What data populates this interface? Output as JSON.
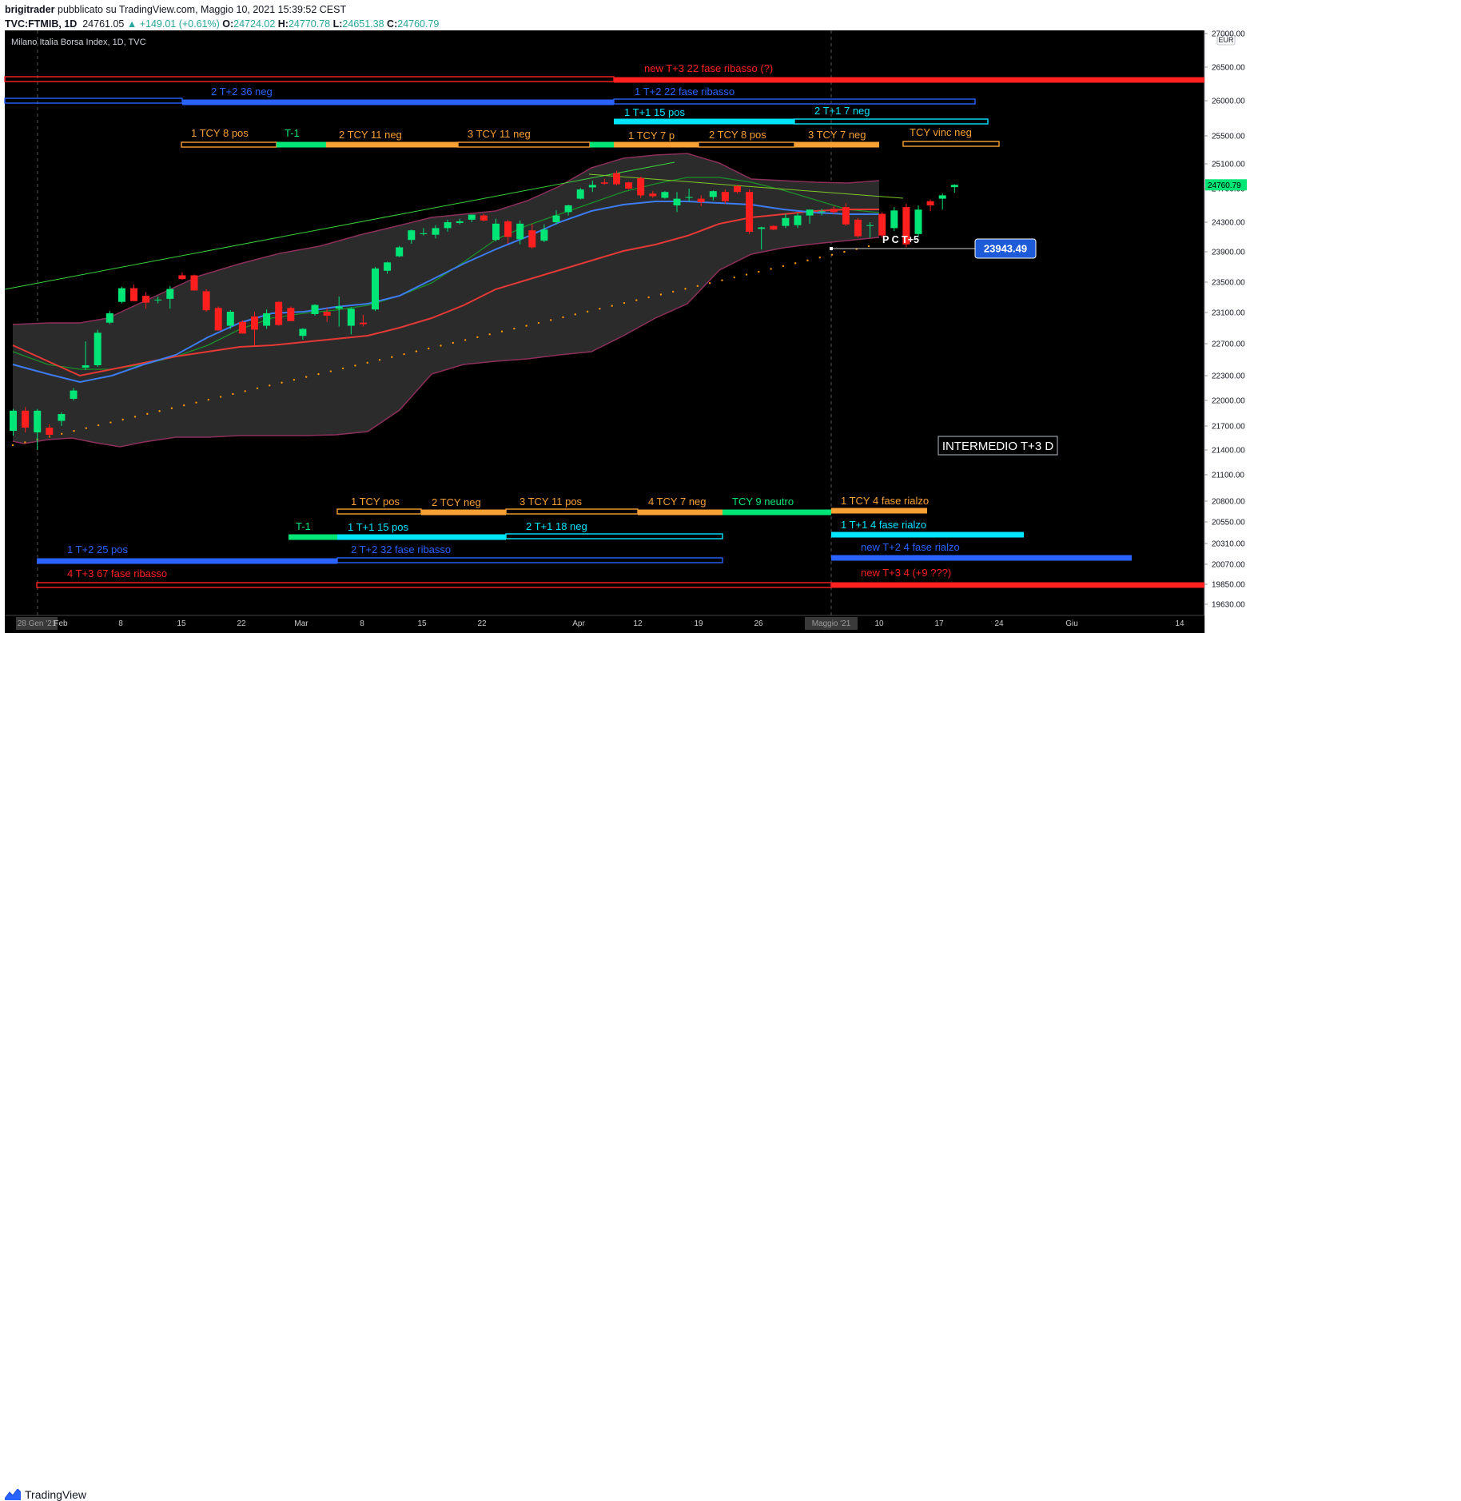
{
  "header": {
    "author": "brigitrader",
    "published": "pubblicato su TradingView.com, Maggio 10, 2021 15:39:52 CEST",
    "symbol": "TVC:FTMIB, 1D",
    "price": "24761.05",
    "change": "▲ +149.01 (+0.61%)",
    "o_label": "O:",
    "o_value": "24724.02",
    "h_label": "H:",
    "h_value": "24770.78",
    "l_label": "L:",
    "l_value": "24651.38",
    "c_label": "C:",
    "c_value": "24760.79"
  },
  "footer": {
    "brand": "TradingView"
  },
  "colors": {
    "background": "#000000",
    "bull": "#00e676",
    "bear": "#ff1f1f",
    "orange": "#f7a035",
    "blue": "#2962ff",
    "cyan": "#00e5ff",
    "red_line": "#ff2020",
    "band_fill": "#2b2b2b",
    "band_edge": "#8c2f5a",
    "ma_blue": "#3d7bf0",
    "ma_red": "#e53935",
    "ma_green": "#1b8f2a",
    "dots": "#ff9800"
  },
  "chart_data": {
    "type": "candlestick",
    "title": "Milano Italia Borsa Index, 1D, TVC",
    "currency": "EUR",
    "y_ticks": [
      27000,
      26500,
      26000,
      25500,
      25100,
      24700,
      24300,
      23900,
      23500,
      23100,
      22700,
      22300,
      22000,
      21700,
      21400,
      21100,
      20800,
      20550,
      20310,
      20070,
      19850,
      19630
    ],
    "y_tick_labels": [
      "27000.00",
      "26500.00",
      "26000.00",
      "25500.00",
      "25100.00",
      "24700.00",
      "24300.00",
      "23900.00",
      "23500.00",
      "23100.00",
      "22700.00",
      "22300.00",
      "22000.00",
      "21700.00",
      "21400.00",
      "21100.00",
      "20800.00",
      "20550.00",
      "20310.00",
      "20070.00",
      "19850.00",
      "19630.00"
    ],
    "x_ticks": [
      "28 Gen '21",
      "Feb",
      "8",
      "15",
      "22",
      "Mar",
      "8",
      "15",
      "22",
      "Apr",
      "12",
      "19",
      "26",
      "Maggio '21",
      "10",
      "17",
      "24",
      "Giu",
      "14"
    ],
    "last_price_label": "24760.79",
    "projection_label": "P C T+5",
    "projection_value": "23943.49",
    "box_label": "INTERMEDIO T+3 D",
    "top_labels": [
      "new T+3 22 fase ribasso (?)",
      "2 T+2 36 neg",
      "1 T+2 22 fase ribasso",
      "1 T+1 15 pos",
      "2  T+1 7 neg",
      "1 TCY 8 pos",
      "T-1",
      "2 TCY 11 neg",
      "3 TCY 11 neg",
      "1 TCY 7 p",
      "2 TCY 8 pos",
      "3 TCY 7 neg",
      "TCY vinc neg"
    ],
    "bottom_labels": [
      "1 TCY pos",
      "2 TCY neg",
      "3 TCY 11 pos",
      "4 TCY 7 neg",
      "TCY 9 neutro",
      "1 TCY 4 fase rialzo",
      "T-1",
      "1 T+1 15 pos",
      "2  T+1 18 neg",
      "1 T+1 4 fase rialzo",
      "1 T+2 25 pos",
      "2 T+2 32 fase ribasso",
      "new T+2 4 fase rialzo",
      "4 T+3 67 fase ribasso",
      "new T+3 4 (+9 ???)"
    ],
    "candles": [
      [
        21640,
        21900,
        21580,
        21880
      ],
      [
        21880,
        21920,
        21620,
        21680
      ],
      [
        21620,
        21900,
        21400,
        21880
      ],
      [
        21680,
        21720,
        21560,
        21590
      ],
      [
        21760,
        21860,
        21700,
        21840
      ],
      [
        22020,
        22150,
        22000,
        22120
      ],
      [
        22400,
        22730,
        22370,
        22430
      ],
      [
        22430,
        22880,
        22410,
        22840
      ],
      [
        22970,
        23120,
        22950,
        23090
      ],
      [
        23240,
        23440,
        23220,
        23420
      ],
      [
        23420,
        23470,
        23250,
        23250
      ],
      [
        23320,
        23370,
        23150,
        23230
      ],
      [
        23260,
        23310,
        23220,
        23270
      ],
      [
        23280,
        23450,
        23150,
        23410
      ],
      [
        23590,
        23630,
        23530,
        23540
      ],
      [
        23590,
        23600,
        23390,
        23390
      ],
      [
        23380,
        23410,
        23110,
        23130
      ],
      [
        23160,
        23180,
        22870,
        22870
      ],
      [
        22930,
        23130,
        22890,
        23110
      ],
      [
        22980,
        23000,
        22830,
        22830
      ],
      [
        23050,
        23110,
        22680,
        22880
      ],
      [
        22930,
        23140,
        22890,
        23090
      ],
      [
        23240,
        23250,
        22930,
        22940
      ],
      [
        23160,
        23180,
        22990,
        22990
      ],
      [
        22800,
        22900,
        22750,
        22890
      ],
      [
        23080,
        23210,
        23060,
        23200
      ],
      [
        23110,
        23160,
        22980,
        23060
      ],
      [
        23150,
        23310,
        22920,
        23180
      ],
      [
        22930,
        23170,
        22820,
        23150
      ],
      [
        22970,
        23070,
        22920,
        22950
      ],
      [
        23140,
        23700,
        23120,
        23680
      ],
      [
        23650,
        23770,
        23610,
        23760
      ],
      [
        23840,
        23980,
        23830,
        23960
      ],
      [
        24060,
        24200,
        24010,
        24190
      ],
      [
        24150,
        24220,
        24120,
        24150
      ],
      [
        24130,
        24260,
        24080,
        24220
      ],
      [
        24220,
        24330,
        24170,
        24300
      ],
      [
        24290,
        24340,
        24270,
        24310
      ],
      [
        24330,
        24390,
        24300,
        24390
      ],
      [
        24380,
        24400,
        24310,
        24320
      ],
      [
        24060,
        24340,
        24040,
        24280
      ],
      [
        24310,
        24330,
        24010,
        24100
      ],
      [
        24070,
        24320,
        24000,
        24280
      ],
      [
        24190,
        24280,
        23940,
        23960
      ],
      [
        24050,
        24270,
        24030,
        24200
      ],
      [
        24300,
        24440,
        24270,
        24380
      ],
      [
        24420,
        24510,
        24380,
        24500
      ],
      [
        24580,
        24710,
        24570,
        24690
      ],
      [
        24720,
        24830,
        24660,
        24760
      ],
      [
        24800,
        24860,
        24760,
        24780
      ],
      [
        24950,
        24990,
        24750,
        24770
      ],
      [
        24800,
        24810,
        24690,
        24700
      ],
      [
        24870,
        24890,
        24590,
        24620
      ],
      [
        24640,
        24670,
        24590,
        24610
      ],
      [
        24590,
        24670,
        24580,
        24660
      ],
      [
        24500,
        24660,
        24420,
        24580
      ],
      [
        24590,
        24700,
        24550,
        24600
      ],
      [
        24580,
        24620,
        24490,
        24540
      ],
      [
        24600,
        24680,
        24560,
        24670
      ],
      [
        24660,
        24690,
        24520,
        24550
      ],
      [
        24740,
        24760,
        24640,
        24660
      ],
      [
        24660,
        24690,
        24140,
        24170
      ],
      [
        24210,
        24240,
        23930,
        24230
      ],
      [
        24250,
        24260,
        24190,
        24200
      ],
      [
        24250,
        24400,
        24220,
        24350
      ],
      [
        24260,
        24410,
        24220,
        24380
      ],
      [
        24380,
        24450,
        24280,
        24450
      ],
      [
        24420,
        24460,
        24380,
        24430
      ],
      [
        24460,
        24490,
        24400,
        24420
      ],
      [
        24480,
        24530,
        24250,
        24270
      ],
      [
        24330,
        24350,
        24090,
        24110
      ],
      [
        24260,
        24300,
        24090,
        24260
      ],
      [
        24400,
        24420,
        24090,
        24120
      ],
      [
        24220,
        24480,
        24180,
        24440
      ],
      [
        24480,
        24520,
        23960,
        24000
      ],
      [
        24140,
        24500,
        24100,
        24450
      ],
      [
        24550,
        24570,
        24430,
        24500
      ],
      [
        24580,
        24640,
        24450,
        24620
      ],
      [
        24724.02,
        24770.78,
        24651.38,
        24760.79
      ]
    ]
  }
}
